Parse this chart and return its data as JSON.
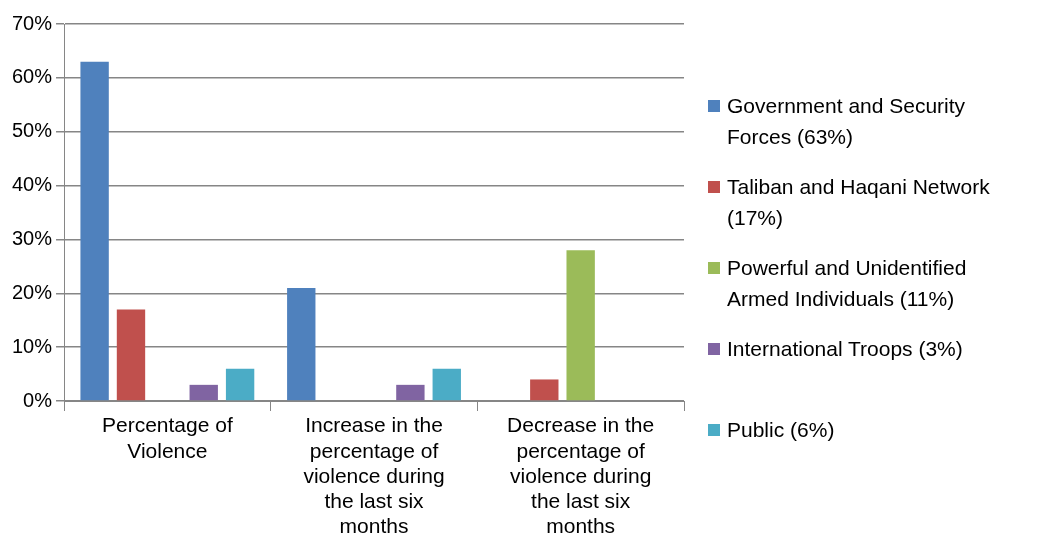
{
  "chart_data": {
    "type": "bar",
    "categories": [
      "Percentage of Violence",
      "Increase in the percentage of violence during the last six months",
      "Decrease in the percentage of violence during the last six months"
    ],
    "series": [
      {
        "name": "Government and Security Forces (63%)",
        "color": "#4f81bd",
        "values": [
          63,
          21,
          0
        ]
      },
      {
        "name": "Taliban and Haqani Network (17%)",
        "color": "#c0504d",
        "values": [
          17,
          0,
          4
        ]
      },
      {
        "name": "Powerful and Unidentified Armed Individuals (11%)",
        "color": "#9bbb59",
        "values": [
          0,
          0,
          28
        ]
      },
      {
        "name": "International Troops (3%)",
        "color": "#8064a2",
        "values": [
          3,
          3,
          0
        ]
      },
      {
        "name": "Public (6%)",
        "color": "#4bacc6",
        "values": [
          6,
          6,
          0
        ]
      }
    ],
    "ylim": [
      0,
      70
    ],
    "yticks": [
      {
        "value": 0,
        "label": "0%"
      },
      {
        "value": 10,
        "label": "10%"
      },
      {
        "value": 20,
        "label": "20%"
      },
      {
        "value": 30,
        "label": "30%"
      },
      {
        "value": 40,
        "label": "40%"
      },
      {
        "value": 50,
        "label": "50%"
      },
      {
        "value": 60,
        "label": "60%"
      },
      {
        "value": 70,
        "label": "70%"
      }
    ],
    "grid": "y",
    "legend": "right"
  }
}
